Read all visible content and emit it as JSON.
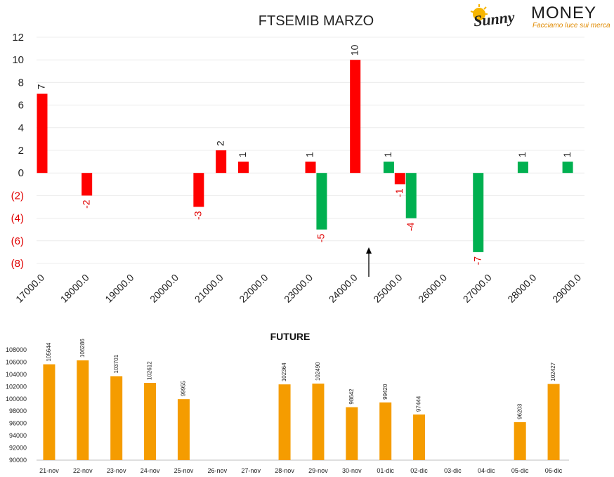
{
  "logo": {
    "word_sunny": "Sunny",
    "word_money": "MONEY",
    "tagline": "Facciamo luce sui mercati"
  },
  "colors": {
    "red": "#ff0000",
    "green": "#00b050",
    "orange": "#f59c00",
    "negative_label": "#e00000"
  },
  "chart_data": [
    {
      "type": "bar",
      "title": "FTSEMIB MARZO",
      "xlabel": "",
      "ylabel": "",
      "ylim": [
        -8,
        12
      ],
      "y_ticks": [
        "12",
        "10",
        "8",
        "6",
        "4",
        "2",
        "0",
        "(2)",
        "(4)",
        "(6)",
        "(8)"
      ],
      "x_ticks": [
        "17000.0",
        "18000.0",
        "19000.0",
        "20000.0",
        "21000.0",
        "22000.0",
        "23000.0",
        "24000.0",
        "25000.0",
        "26000.0",
        "27000.0",
        "28000.0",
        "29000.0"
      ],
      "x_range": [
        17000,
        29000
      ],
      "grid": true,
      "annotation": "arrow pointing up at about 24500",
      "bars": [
        {
          "x": 17000,
          "value": 7,
          "label": "7",
          "color": "red"
        },
        {
          "x": 18000,
          "value": -2,
          "label": "-2",
          "color": "red"
        },
        {
          "x": 20500,
          "value": -3,
          "label": "-3",
          "color": "red"
        },
        {
          "x": 21000,
          "value": 2,
          "label": "2",
          "color": "red"
        },
        {
          "x": 21500,
          "value": 1,
          "label": "1",
          "color": "red"
        },
        {
          "x": 23000,
          "value": 1,
          "label": "1",
          "color": "red"
        },
        {
          "x": 23250,
          "value": -5,
          "label": "-5",
          "color": "green"
        },
        {
          "x": 24000,
          "value": 10,
          "label": "10",
          "color": "red"
        },
        {
          "x": 24750,
          "value": 1,
          "label": "1",
          "color": "green"
        },
        {
          "x": 25000,
          "value": -1,
          "label": "-1",
          "color": "red"
        },
        {
          "x": 25250,
          "value": -4,
          "label": "-4",
          "color": "green"
        },
        {
          "x": 26750,
          "value": -7,
          "label": "-7",
          "color": "green"
        },
        {
          "x": 27750,
          "value": 1,
          "label": "1",
          "color": "green"
        },
        {
          "x": 28750,
          "value": 1,
          "label": "1",
          "color": "green"
        }
      ]
    },
    {
      "type": "bar",
      "title": "FUTURE",
      "xlabel": "",
      "ylabel": "",
      "ylim": [
        90000,
        108000
      ],
      "y_ticks": [
        "108000",
        "106000",
        "104000",
        "102000",
        "100000",
        "98000",
        "96000",
        "94000",
        "92000",
        "90000"
      ],
      "categories": [
        "21-nov",
        "22-nov",
        "23-nov",
        "24-nov",
        "25-nov",
        "26-nov",
        "27-nov",
        "28-nov",
        "29-nov",
        "30-nov",
        "01-dic",
        "02-dic",
        "03-dic",
        "04-dic",
        "05-dic",
        "06-dic"
      ],
      "values": [
        105644,
        106286,
        103701,
        102612,
        99955,
        null,
        null,
        102364,
        102490,
        98642,
        99420,
        97444,
        null,
        null,
        96203,
        102427
      ],
      "labels": [
        "105644",
        "106286",
        "103701",
        "102612",
        "99955",
        "",
        "",
        "102364",
        "102490",
        "98642",
        "99420",
        "97444",
        "",
        "",
        "96203",
        "102427"
      ],
      "color": "orange",
      "grid": false
    }
  ]
}
